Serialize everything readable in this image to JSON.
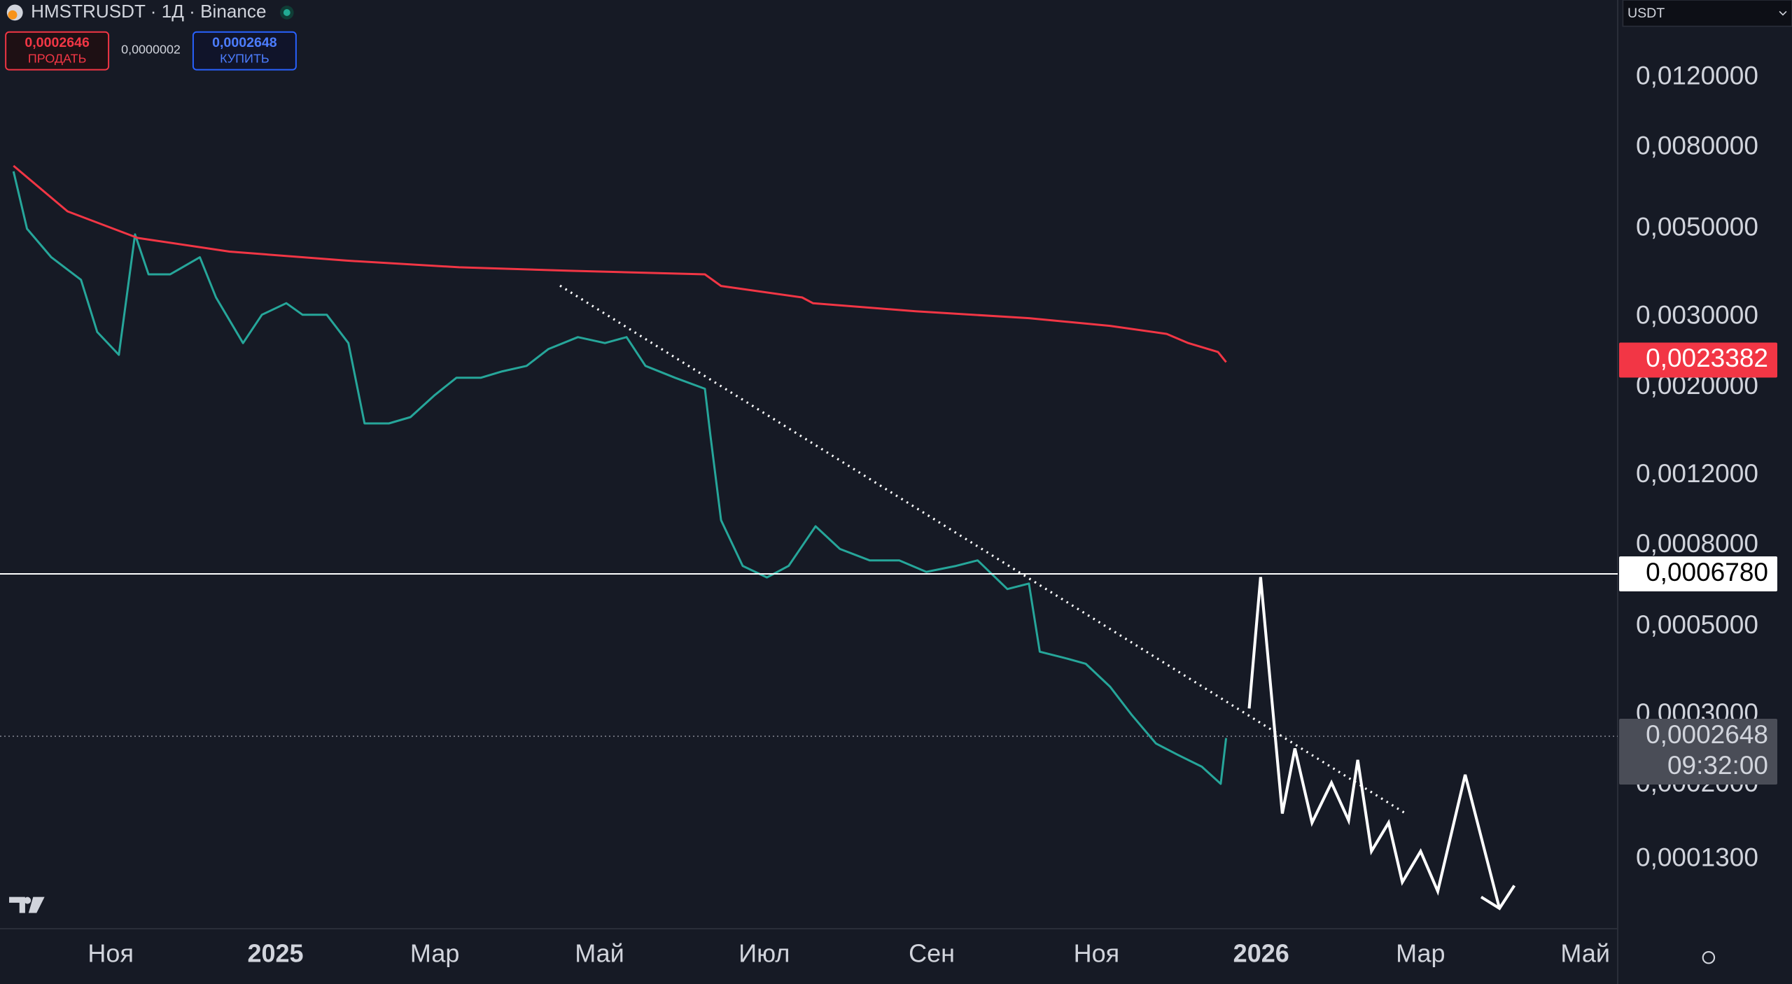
{
  "chart_data": {
    "type": "line",
    "title": "HMSTRUSDT · 1Д · Binance",
    "log_scale": true,
    "grid": false,
    "xlim": [
      -41,
      558
    ],
    "xticks": [
      {
        "value": 0,
        "label": "Ноя"
      },
      {
        "value": 61,
        "label": "2025"
      },
      {
        "value": 120,
        "label": "Мар"
      },
      {
        "value": 181,
        "label": "Май"
      },
      {
        "value": 242,
        "label": "Июл"
      },
      {
        "value": 304,
        "label": "Сен"
      },
      {
        "value": 365,
        "label": "Ноя"
      },
      {
        "value": 426,
        "label": "2026"
      },
      {
        "value": 485,
        "label": "Мар"
      },
      {
        "value": 546,
        "label": "Май"
      }
    ],
    "ylim": [
      8.69e-05,
      0.0188
    ],
    "yticks": [
      {
        "value": 0.012,
        "label": "0,0120000"
      },
      {
        "value": 0.008,
        "label": "0,0080000"
      },
      {
        "value": 0.005,
        "label": "0,0050000"
      },
      {
        "value": 0.003,
        "label": "0,0030000"
      },
      {
        "value": 0.002,
        "label": "0,0020000"
      },
      {
        "value": 0.0012,
        "label": "0,0012000"
      },
      {
        "value": 0.0008,
        "label": "0,0008000"
      },
      {
        "value": 0.0005,
        "label": "0,0005000"
      },
      {
        "value": 0.0003,
        "label": "0,0003000"
      },
      {
        "value": 0.0002,
        "label": "0,0002000"
      },
      {
        "value": 0.00013,
        "label": "0,0001300"
      }
    ],
    "series": [
      {
        "color": "#26a69a",
        "x": [
          -36,
          -31,
          -22,
          -11,
          -5,
          3,
          9,
          14,
          22,
          33,
          39,
          49,
          56,
          65,
          71,
          80,
          88,
          94,
          103,
          111,
          120,
          128,
          137,
          145,
          154,
          162,
          173,
          183,
          191,
          198,
          209,
          220,
          222,
          226,
          234,
          243,
          251,
          261,
          270,
          281,
          292,
          302,
          313,
          321,
          332,
          340,
          344,
          353,
          361,
          370,
          378,
          387,
          395,
          404,
          411,
          413
        ],
        "values": [
          0.00697,
          0.005,
          0.00424,
          0.00372,
          0.00275,
          0.00241,
          0.00484,
          0.00384,
          0.00384,
          0.00424,
          0.00336,
          0.00258,
          0.00304,
          0.00325,
          0.00304,
          0.00304,
          0.00258,
          0.00162,
          0.00162,
          0.00168,
          0.00191,
          0.00211,
          0.00211,
          0.00219,
          0.00226,
          0.00249,
          0.00267,
          0.00258,
          0.00267,
          0.00226,
          0.00211,
          0.00198,
          0.00152,
          0.000925,
          0.00071,
          0.000664,
          0.00071,
          0.000893,
          0.000783,
          0.000733,
          0.000733,
          0.000686,
          0.00071,
          0.000733,
          0.000621,
          0.000641,
          0.000432,
          0.000417,
          0.000403,
          0.000353,
          0.0003,
          0.000254,
          0.000238,
          0.000222,
          0.000201,
          0.000262
        ]
      },
      {
        "color": "#f23645",
        "x": [
          -36,
          -16,
          10,
          44,
          87,
          129,
          170,
          220,
          226,
          256,
          260,
          298,
          340,
          370,
          391,
          399,
          410,
          413
        ],
        "values": [
          0.0072,
          0.00553,
          0.00474,
          0.00438,
          0.00416,
          0.004,
          0.00392,
          0.00384,
          0.00359,
          0.00336,
          0.00325,
          0.0031,
          0.00298,
          0.00285,
          0.00272,
          0.00258,
          0.00245,
          0.00231
        ]
      }
    ],
    "price_tags": [
      {
        "value": 0.0023382,
        "label": "0,0023382",
        "color": "#f23645",
        "text_color": "#ffffff"
      },
      {
        "value": 0.000678,
        "label": "0,0006780",
        "color": "#ffffff",
        "text_color": "#000000",
        "line": "solid"
      },
      {
        "value": 0.0002648,
        "label": "0,0002648",
        "color": "#4a4d57",
        "text_color": "#d1d4dc",
        "line": "dotted",
        "countdown": "09:32:00"
      }
    ]
  },
  "header": {
    "sell_price": "0,0002646",
    "sell_label": "ПРОДАТЬ",
    "spread": "0,0000002",
    "buy_price": "0,0002648",
    "buy_label": "КУПИТЬ",
    "currency": "USDT"
  }
}
